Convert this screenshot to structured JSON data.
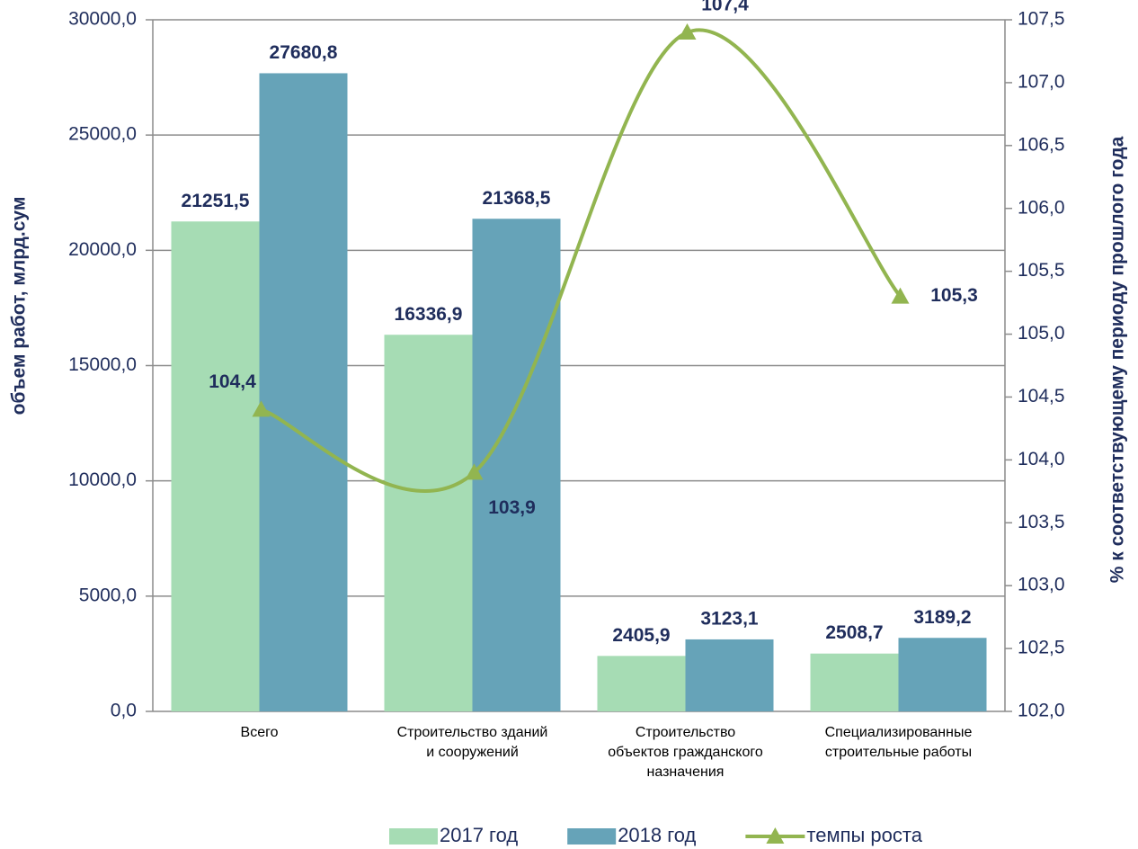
{
  "chart_data": {
    "type": "bar",
    "categories": [
      [
        "Всего"
      ],
      [
        "Строительство  зданий",
        "и сооружений"
      ],
      [
        "Строительство",
        "объектов гражданского",
        "назначения"
      ],
      [
        "Специализированные",
        "строительные работы"
      ]
    ],
    "y_label": "объем работ, млрд.сум",
    "y2_label": "% к соответствующему периоду прошлого года",
    "ylim": [
      0,
      30000
    ],
    "yticks": [
      {
        "value": 0,
        "label": "0,0"
      },
      {
        "value": 5000,
        "label": "5000,0"
      },
      {
        "value": 10000,
        "label": "10000,0"
      },
      {
        "value": 15000,
        "label": "15000,0"
      },
      {
        "value": 20000,
        "label": "20000,0"
      },
      {
        "value": 25000,
        "label": "25000,0"
      },
      {
        "value": 30000,
        "label": "30000,0"
      }
    ],
    "y2lim": [
      102,
      107.5
    ],
    "y2ticks": [
      {
        "value": 102,
        "label": "102,0"
      },
      {
        "value": 102.5,
        "label": "102,5"
      },
      {
        "value": 103,
        "label": "103,0"
      },
      {
        "value": 103.5,
        "label": "103,5"
      },
      {
        "value": 104,
        "label": "104,0"
      },
      {
        "value": 104.5,
        "label": "104,5"
      },
      {
        "value": 105,
        "label": "105,0"
      },
      {
        "value": 105.5,
        "label": "105,5"
      },
      {
        "value": 106,
        "label": "106,0"
      },
      {
        "value": 106.5,
        "label": "106,5"
      },
      {
        "value": 107,
        "label": "107,0"
      },
      {
        "value": 107.5,
        "label": "107,5"
      }
    ],
    "grid": true,
    "legend": "bottom",
    "series": [
      {
        "name": "2017 год",
        "type": "bar",
        "color": "#a6dcb4",
        "values": [
          21251.5,
          16336.9,
          2405.9,
          2508.7
        ],
        "value_labels": [
          "21251,5",
          "16336,9",
          "2405,9",
          "2508,7"
        ]
      },
      {
        "name": "2018 год",
        "type": "bar",
        "color": "#66a3b8",
        "values": [
          27680.8,
          21368.5,
          3123.1,
          3189.2
        ],
        "value_labels": [
          "27680,8",
          "21368,5",
          "3123,1",
          "3189,2"
        ]
      },
      {
        "name": "темпы роста",
        "type": "line",
        "axis": "y2",
        "color": "#92b550",
        "values": [
          104.4,
          103.9,
          107.4,
          105.3
        ],
        "value_labels": [
          "104,4",
          "103,9",
          "107,4",
          "105,3"
        ]
      }
    ]
  }
}
